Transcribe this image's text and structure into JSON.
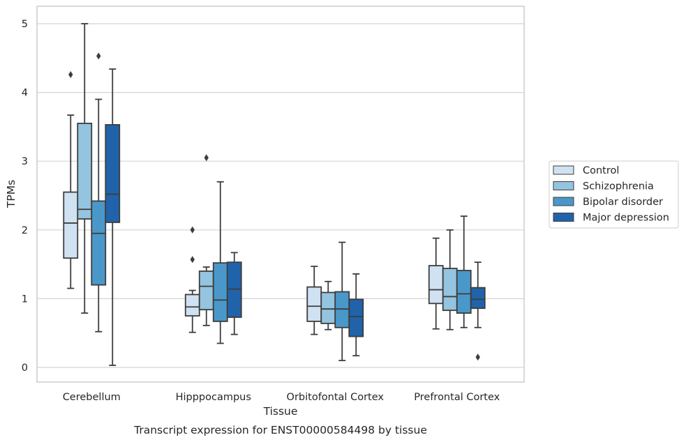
{
  "chart_data": {
    "type": "boxplot",
    "caption": "Transcript expression for ENST00000584498 by tissue",
    "xlabel": "Tissue",
    "ylabel": "TPMs",
    "ylim": [
      -0.2,
      5.25
    ],
    "yticks": [
      0,
      1,
      2,
      3,
      4,
      5
    ],
    "grid": "horizontal",
    "legend_position": "right",
    "categories": [
      "Cerebellum",
      "Hipppocampus",
      "Orbitofontal Cortex",
      "Prefrontal Cortex"
    ],
    "series": [
      {
        "name": "Control",
        "color": "#d0e1f2",
        "boxes": [
          {
            "whisker_low": 1.15,
            "q1": 1.59,
            "median": 2.1,
            "q3": 2.55,
            "whisker_high": 3.67,
            "outliers": [
              4.26
            ]
          },
          {
            "whisker_low": 0.51,
            "q1": 0.75,
            "median": 0.88,
            "q3": 1.06,
            "whisker_high": 1.12,
            "outliers": [
              1.57,
              2.0
            ]
          },
          {
            "whisker_low": 0.48,
            "q1": 0.67,
            "median": 0.89,
            "q3": 1.17,
            "whisker_high": 1.47,
            "outliers": []
          },
          {
            "whisker_low": 0.56,
            "q1": 0.93,
            "median": 1.13,
            "q3": 1.48,
            "whisker_high": 1.88,
            "outliers": []
          }
        ]
      },
      {
        "name": "Schizophrenia",
        "color": "#94c4df",
        "boxes": [
          {
            "whisker_low": 0.79,
            "q1": 2.16,
            "median": 2.3,
            "q3": 3.55,
            "whisker_high": 5.0,
            "outliers": []
          },
          {
            "whisker_low": 0.61,
            "q1": 0.84,
            "median": 1.18,
            "q3": 1.4,
            "whisker_high": 1.46,
            "outliers": [
              3.05
            ]
          },
          {
            "whisker_low": 0.55,
            "q1": 0.64,
            "median": 0.85,
            "q3": 1.09,
            "whisker_high": 1.25,
            "outliers": []
          },
          {
            "whisker_low": 0.55,
            "q1": 0.83,
            "median": 1.03,
            "q3": 1.44,
            "whisker_high": 2.0,
            "outliers": []
          }
        ]
      },
      {
        "name": "Bipolar disorder",
        "color": "#4a98c9",
        "boxes": [
          {
            "whisker_low": 0.52,
            "q1": 1.2,
            "median": 1.95,
            "q3": 2.42,
            "whisker_high": 3.9,
            "outliers": [
              4.53
            ]
          },
          {
            "whisker_low": 0.35,
            "q1": 0.67,
            "median": 0.98,
            "q3": 1.52,
            "whisker_high": 2.7,
            "outliers": []
          },
          {
            "whisker_low": 0.1,
            "q1": 0.58,
            "median": 0.85,
            "q3": 1.1,
            "whisker_high": 1.82,
            "outliers": []
          },
          {
            "whisker_low": 0.58,
            "q1": 0.79,
            "median": 1.07,
            "q3": 1.41,
            "whisker_high": 2.2,
            "outliers": []
          }
        ]
      },
      {
        "name": "Major depression",
        "color": "#2163aa",
        "boxes": [
          {
            "whisker_low": 0.03,
            "q1": 2.11,
            "median": 2.52,
            "q3": 3.53,
            "whisker_high": 4.34,
            "outliers": []
          },
          {
            "whisker_low": 0.48,
            "q1": 0.73,
            "median": 1.14,
            "q3": 1.53,
            "whisker_high": 1.67,
            "outliers": []
          },
          {
            "whisker_low": 0.17,
            "q1": 0.45,
            "median": 0.74,
            "q3": 0.99,
            "whisker_high": 1.36,
            "outliers": []
          },
          {
            "whisker_low": 0.58,
            "q1": 0.86,
            "median": 0.99,
            "q3": 1.16,
            "whisker_high": 1.53,
            "outliers": [
              0.15
            ]
          }
        ]
      }
    ]
  }
}
